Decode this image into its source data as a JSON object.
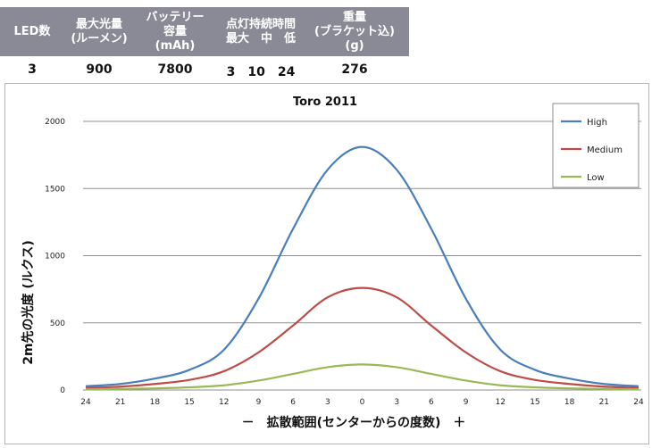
{
  "spec_table": {
    "headers": [
      {
        "lines": [
          "LED数"
        ]
      },
      {
        "lines": [
          "最大光量",
          "(ルーメン)"
        ]
      },
      {
        "lines": [
          "バッテリー",
          "容量",
          "(mAh)"
        ]
      },
      {
        "lines": [
          "点灯持続時間",
          "最大　中　低"
        ]
      },
      {
        "lines": [
          "重量",
          "(ブラケット込)",
          "(g)"
        ]
      }
    ],
    "values": [
      "3",
      "900",
      "7800",
      "3　10　24",
      "276"
    ],
    "header_bg": "#8a8a96"
  },
  "chart_data": {
    "type": "line",
    "title": "Toro 2011",
    "ylabel": "2m先の光度 (ルクス)",
    "xlabel": "－　拡散範囲(センターからの度数)　＋",
    "categories": [
      "24",
      "21",
      "18",
      "15",
      "12",
      "9",
      "6",
      "3",
      "0",
      "3",
      "6",
      "9",
      "12",
      "15",
      "18",
      "21",
      "24"
    ],
    "ylim": [
      0,
      2000
    ],
    "yticks": [
      "0",
      "500",
      "1000",
      "1500",
      "2000"
    ],
    "grid": true,
    "legend_position": "top-right",
    "series": [
      {
        "name": "High",
        "color": "#4a7ebb",
        "values": [
          28,
          45,
          85,
          150,
          300,
          680,
          1200,
          1640,
          1810,
          1640,
          1200,
          680,
          300,
          150,
          85,
          45,
          28
        ]
      },
      {
        "name": "Medium",
        "color": "#be4b48",
        "values": [
          15,
          25,
          45,
          75,
          140,
          280,
          480,
          690,
          760,
          690,
          480,
          280,
          140,
          75,
          45,
          25,
          15
        ]
      },
      {
        "name": "Low",
        "color": "#98b954",
        "values": [
          5,
          8,
          12,
          20,
          35,
          70,
          120,
          170,
          190,
          170,
          120,
          70,
          35,
          20,
          12,
          8,
          5
        ]
      }
    ]
  }
}
